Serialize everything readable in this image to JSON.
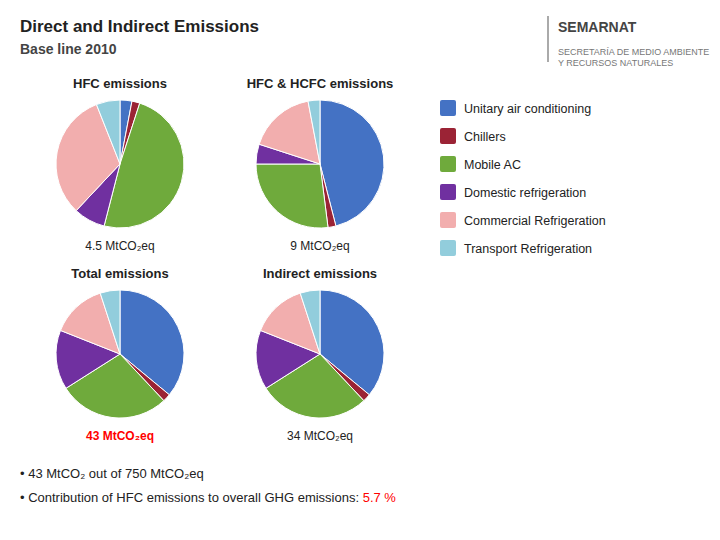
{
  "title": "Direct and Indirect Emissions",
  "subtitle": "Base line 2010",
  "source": [
    "SEMARNAT",
    "SECRETARÍA DE MEDIO AMBIENTE",
    "Y RECURSOS NATURALES"
  ],
  "annotations": [
    [
      {
        "text": "• 43 MtCO₂ out of 750 MtCO₂eq"
      }
    ],
    [
      {
        "text": "• Contribution of HFC emissions to overall GHG emissions: "
      },
      {
        "text": "5.7 %",
        "color": "red"
      }
    ]
  ],
  "chart_data": [
    {
      "type": "pie",
      "title": "HFC emissions",
      "categories": [
        "Unitary air conditioning",
        "Chillers",
        "Mobile AC",
        "Domestic refrigeration",
        "Commercial Refrigeration",
        "Transport Refrigeration"
      ],
      "values": [
        3,
        2,
        49,
        8,
        32,
        6
      ],
      "colors": [
        "#4472C4",
        "#9B2335",
        "#6FAA3C",
        "#7030A0",
        "#F2AEAE",
        "#92CDDC"
      ],
      "legend": "right",
      "annotations": [
        {
          "text": "4.5 MtCO₂eq"
        }
      ]
    },
    {
      "type": "pie",
      "title": "HFC & HCFC emissions",
      "categories": [
        "Unitary air conditioning",
        "Chillers",
        "Mobile AC",
        "Domestic refrigeration",
        "Commercial Refrigeration",
        "Transport Refrigeration"
      ],
      "values": [
        46,
        2,
        27,
        5,
        17,
        3
      ],
      "colors": [
        "#4472C4",
        "#9B2335",
        "#6FAA3C",
        "#7030A0",
        "#F2AEAE",
        "#92CDDC"
      ],
      "annotations": [
        {
          "text": "9 MtCO₂eq"
        }
      ]
    },
    {
      "type": "pie",
      "title": "Total emissions",
      "categories": [
        "Unitary air conditioning",
        "Chillers",
        "Mobile AC",
        "Domestic refrigeration",
        "Commercial Refrigeration",
        "Transport Refrigeration"
      ],
      "values": [
        36,
        2,
        28,
        15,
        14,
        5
      ],
      "colors": [
        "#4472C4",
        "#9B2335",
        "#6FAA3C",
        "#7030A0",
        "#F2AEAE",
        "#92CDDC"
      ],
      "annotations": [
        {
          "text": "43 MtCO₂eq",
          "color": "red"
        }
      ]
    },
    {
      "type": "pie",
      "title": "Indirect emissions",
      "categories": [
        "Unitary air conditioning",
        "Chillers",
        "Mobile AC",
        "Domestic refrigeration",
        "Commercial Refrigeration",
        "Transport Refrigeration"
      ],
      "values": [
        36,
        2,
        28,
        15,
        14,
        5
      ],
      "colors": [
        "#4472C4",
        "#9B2335",
        "#6FAA3C",
        "#7030A0",
        "#F2AEAE",
        "#92CDDC"
      ],
      "annotations": [
        {
          "text": "34 MtCO₂eq"
        }
      ]
    }
  ]
}
